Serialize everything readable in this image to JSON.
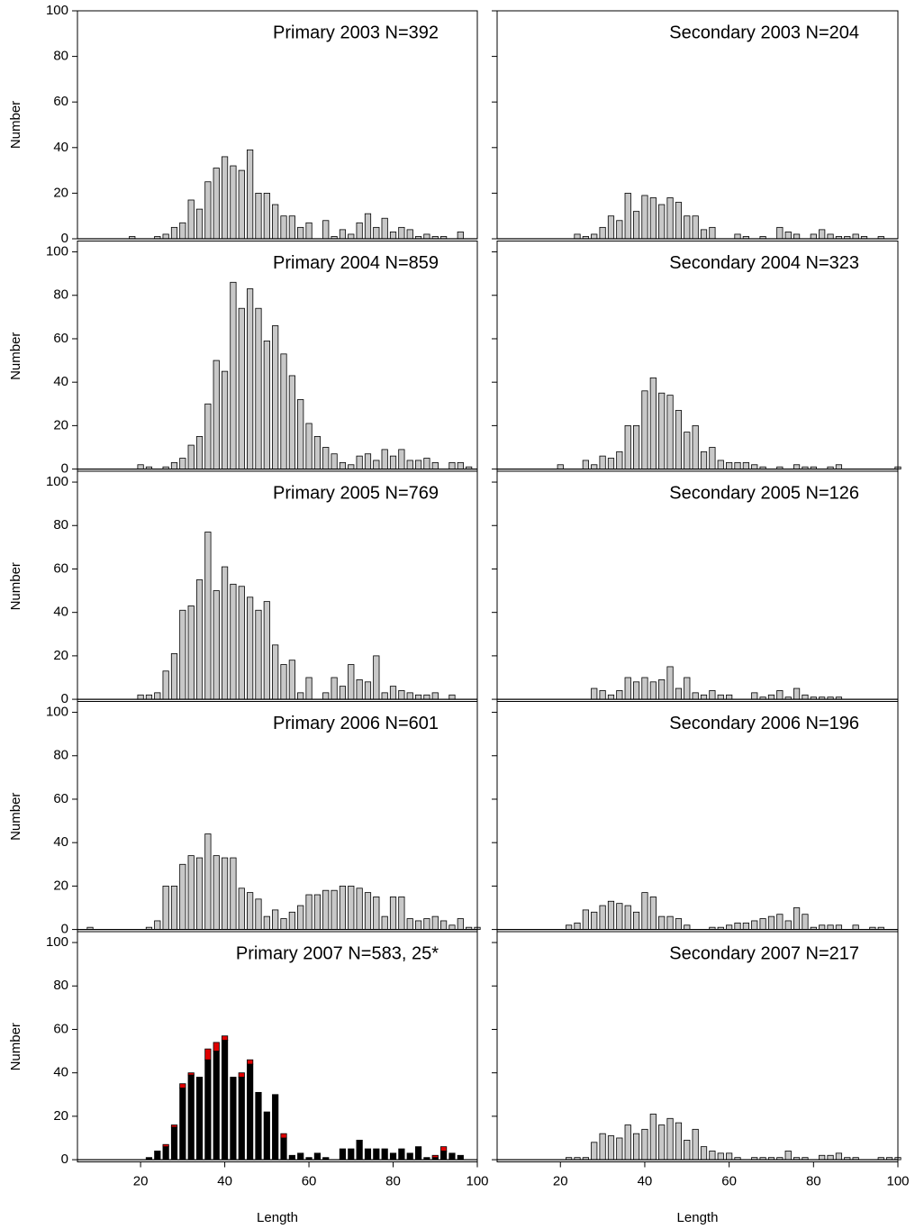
{
  "chart_data": [
    {
      "type": "bar",
      "title": "Primary 2003 N=392",
      "ylabel": "Number",
      "color": "#c8c8c8",
      "xlim": [
        5,
        100
      ],
      "ylim": [
        0,
        100
      ],
      "yticks": [
        0,
        20,
        40,
        60,
        80,
        100
      ],
      "x": [
        18,
        24,
        26,
        28,
        30,
        32,
        34,
        36,
        38,
        40,
        42,
        44,
        46,
        48,
        50,
        52,
        54,
        56,
        58,
        60,
        64,
        66,
        68,
        70,
        72,
        74,
        76,
        78,
        80,
        82,
        84,
        86,
        88,
        90,
        92,
        96
      ],
      "values": [
        1,
        1,
        2,
        5,
        7,
        17,
        13,
        25,
        31,
        36,
        32,
        30,
        39,
        20,
        20,
        15,
        10,
        10,
        5,
        7,
        8,
        1,
        4,
        2,
        7,
        11,
        5,
        9,
        3,
        5,
        4,
        1,
        2,
        1,
        1,
        3
      ]
    },
    {
      "type": "bar",
      "title": "Secondary 2003 N=204",
      "color": "#c8c8c8",
      "xlim": [
        5,
        100
      ],
      "ylim": [
        0,
        100
      ],
      "yticks": [
        0,
        20,
        40,
        60,
        80,
        100
      ],
      "x": [
        24,
        26,
        28,
        30,
        32,
        34,
        36,
        38,
        40,
        42,
        44,
        46,
        48,
        50,
        52,
        54,
        56,
        62,
        64,
        68,
        72,
        74,
        76,
        80,
        82,
        84,
        86,
        88,
        90,
        92,
        96
      ],
      "values": [
        2,
        1,
        2,
        5,
        10,
        8,
        20,
        12,
        19,
        18,
        15,
        18,
        16,
        10,
        10,
        4,
        5,
        2,
        1,
        1,
        5,
        3,
        2,
        2,
        4,
        2,
        1,
        1,
        2,
        1,
        1
      ]
    },
    {
      "type": "bar",
      "title": "Primary 2004 N=859",
      "ylabel": "Number",
      "color": "#c8c8c8",
      "xlim": [
        5,
        100
      ],
      "ylim": [
        -1,
        105
      ],
      "yticks": [
        0,
        20,
        40,
        60,
        80,
        100
      ],
      "x": [
        20,
        22,
        26,
        28,
        30,
        32,
        34,
        36,
        38,
        40,
        42,
        44,
        46,
        48,
        50,
        52,
        54,
        56,
        58,
        60,
        62,
        64,
        66,
        68,
        70,
        72,
        74,
        76,
        78,
        80,
        82,
        84,
        86,
        88,
        90,
        94,
        96,
        98
      ],
      "values": [
        2,
        1,
        1,
        3,
        5,
        11,
        15,
        30,
        50,
        45,
        86,
        74,
        83,
        74,
        59,
        66,
        53,
        43,
        32,
        21,
        15,
        10,
        7,
        3,
        2,
        6,
        7,
        4,
        9,
        6,
        9,
        4,
        4,
        5,
        3,
        3,
        3,
        1
      ]
    },
    {
      "type": "bar",
      "title": "Secondary 2004 N=323",
      "color": "#c8c8c8",
      "xlim": [
        5,
        100
      ],
      "ylim": [
        -1,
        105
      ],
      "yticks": [
        0,
        20,
        40,
        60,
        80,
        100
      ],
      "x": [
        20,
        26,
        28,
        30,
        32,
        34,
        36,
        38,
        40,
        42,
        44,
        46,
        48,
        50,
        52,
        54,
        56,
        58,
        60,
        62,
        64,
        66,
        68,
        72,
        76,
        78,
        80,
        84,
        86,
        100
      ],
      "values": [
        2,
        4,
        2,
        6,
        5,
        8,
        20,
        20,
        36,
        42,
        35,
        34,
        27,
        17,
        20,
        8,
        10,
        4,
        3,
        3,
        3,
        2,
        1,
        1,
        2,
        1,
        1,
        1,
        2,
        1
      ]
    },
    {
      "type": "bar",
      "title": "Primary 2005 N=769",
      "ylabel": "Number",
      "color": "#c8c8c8",
      "xlim": [
        5,
        100
      ],
      "ylim": [
        -1,
        105
      ],
      "yticks": [
        0,
        20,
        40,
        60,
        80,
        100
      ],
      "x": [
        20,
        22,
        24,
        26,
        28,
        30,
        32,
        34,
        36,
        38,
        40,
        42,
        44,
        46,
        48,
        50,
        52,
        54,
        56,
        58,
        60,
        64,
        66,
        68,
        70,
        72,
        74,
        76,
        78,
        80,
        82,
        84,
        86,
        88,
        90,
        94
      ],
      "values": [
        2,
        2,
        3,
        13,
        21,
        41,
        43,
        55,
        77,
        50,
        61,
        53,
        52,
        47,
        41,
        45,
        25,
        16,
        18,
        3,
        10,
        3,
        10,
        6,
        16,
        9,
        8,
        20,
        3,
        6,
        4,
        3,
        2,
        2,
        3,
        2
      ]
    },
    {
      "type": "bar",
      "title": "Secondary 2005 N=126",
      "color": "#c8c8c8",
      "xlim": [
        5,
        100
      ],
      "ylim": [
        -1,
        105
      ],
      "yticks": [
        0,
        20,
        40,
        60,
        80,
        100
      ],
      "x": [
        28,
        30,
        32,
        34,
        36,
        38,
        40,
        42,
        44,
        46,
        48,
        50,
        52,
        54,
        56,
        58,
        60,
        66,
        68,
        70,
        72,
        74,
        76,
        78,
        80,
        82,
        84,
        86
      ],
      "values": [
        5,
        4,
        2,
        4,
        10,
        8,
        10,
        8,
        9,
        15,
        5,
        10,
        3,
        2,
        4,
        2,
        2,
        3,
        1,
        2,
        4,
        1,
        5,
        2,
        1,
        1,
        1,
        1
      ]
    },
    {
      "type": "bar",
      "title": "Primary 2006 N=601",
      "ylabel": "Number",
      "color": "#c8c8c8",
      "xlim": [
        5,
        100
      ],
      "ylim": [
        -1,
        105
      ],
      "yticks": [
        0,
        20,
        40,
        60,
        80,
        100
      ],
      "x": [
        8,
        22,
        24,
        26,
        28,
        30,
        32,
        34,
        36,
        38,
        40,
        42,
        44,
        46,
        48,
        50,
        52,
        54,
        56,
        58,
        60,
        62,
        64,
        66,
        68,
        70,
        72,
        74,
        76,
        78,
        80,
        82,
        84,
        86,
        88,
        90,
        92,
        94,
        96,
        98,
        100
      ],
      "values": [
        1,
        1,
        4,
        20,
        20,
        30,
        34,
        33,
        44,
        34,
        33,
        33,
        19,
        17,
        14,
        6,
        9,
        5,
        8,
        11,
        16,
        16,
        18,
        18,
        20,
        20,
        19,
        17,
        15,
        6,
        15,
        15,
        5,
        4,
        5,
        6,
        4,
        2,
        5,
        1,
        1
      ]
    },
    {
      "type": "bar",
      "title": "Secondary 2006 N=196",
      "color": "#c8c8c8",
      "xlim": [
        5,
        100
      ],
      "ylim": [
        -1,
        105
      ],
      "yticks": [
        0,
        20,
        40,
        60,
        80,
        100
      ],
      "x": [
        22,
        24,
        26,
        28,
        30,
        32,
        34,
        36,
        38,
        40,
        42,
        44,
        46,
        48,
        50,
        56,
        58,
        60,
        62,
        64,
        66,
        68,
        70,
        72,
        74,
        76,
        78,
        80,
        82,
        84,
        86,
        90,
        94,
        96
      ],
      "values": [
        2,
        3,
        9,
        8,
        11,
        13,
        12,
        11,
        8,
        17,
        15,
        6,
        6,
        5,
        2,
        1,
        1,
        2,
        3,
        3,
        4,
        5,
        6,
        7,
        4,
        10,
        7,
        1,
        2,
        2,
        2,
        2,
        1,
        1
      ]
    },
    {
      "type": "bar",
      "stacked": true,
      "title": "Primary 2007 N=583, 25*",
      "ylabel": "Number",
      "xlabel": "Length",
      "xlim": [
        5,
        100
      ],
      "xticks": [
        20,
        40,
        60,
        80,
        100
      ],
      "ylim": [
        -1,
        105
      ],
      "yticks": [
        0,
        20,
        40,
        60,
        80,
        100
      ],
      "x": [
        22,
        24,
        26,
        28,
        30,
        32,
        34,
        36,
        38,
        40,
        42,
        44,
        46,
        48,
        50,
        52,
        54,
        56,
        58,
        60,
        62,
        64,
        68,
        70,
        72,
        74,
        76,
        78,
        80,
        82,
        84,
        86,
        88,
        90,
        92,
        94,
        96
      ],
      "series": [
        {
          "color": "#000000",
          "values": [
            1,
            4,
            6,
            15,
            33,
            39,
            38,
            46,
            50,
            55,
            38,
            38,
            44,
            31,
            22,
            30,
            10,
            2,
            3,
            1,
            3,
            1,
            5,
            5,
            9,
            5,
            5,
            5,
            3,
            5,
            3,
            6,
            1,
            1,
            4,
            3,
            2
          ]
        },
        {
          "color": "#e00000",
          "values": [
            null,
            null,
            1,
            1,
            2,
            1,
            null,
            5,
            4,
            2,
            null,
            2,
            2,
            null,
            null,
            null,
            2,
            null,
            null,
            null,
            null,
            null,
            null,
            null,
            null,
            null,
            null,
            null,
            null,
            null,
            null,
            null,
            null,
            1,
            2,
            null,
            null
          ]
        }
      ]
    },
    {
      "type": "bar",
      "title": "Secondary 2007 N=217",
      "xlabel": "Length",
      "color": "#c8c8c8",
      "xlim": [
        5,
        100
      ],
      "xticks": [
        20,
        40,
        60,
        80,
        100
      ],
      "ylim": [
        -1,
        105
      ],
      "yticks": [
        0,
        20,
        40,
        60,
        80,
        100
      ],
      "x": [
        22,
        24,
        26,
        28,
        30,
        32,
        34,
        36,
        38,
        40,
        42,
        44,
        46,
        48,
        50,
        52,
        54,
        56,
        58,
        60,
        62,
        66,
        68,
        70,
        72,
        74,
        76,
        78,
        82,
        84,
        86,
        88,
        90,
        96,
        98,
        100
      ],
      "values": [
        1,
        1,
        1,
        8,
        12,
        11,
        10,
        16,
        12,
        14,
        21,
        16,
        19,
        17,
        9,
        14,
        6,
        4,
        3,
        3,
        1,
        1,
        1,
        1,
        1,
        4,
        1,
        1,
        2,
        2,
        3,
        1,
        1,
        1,
        1,
        1
      ]
    }
  ]
}
